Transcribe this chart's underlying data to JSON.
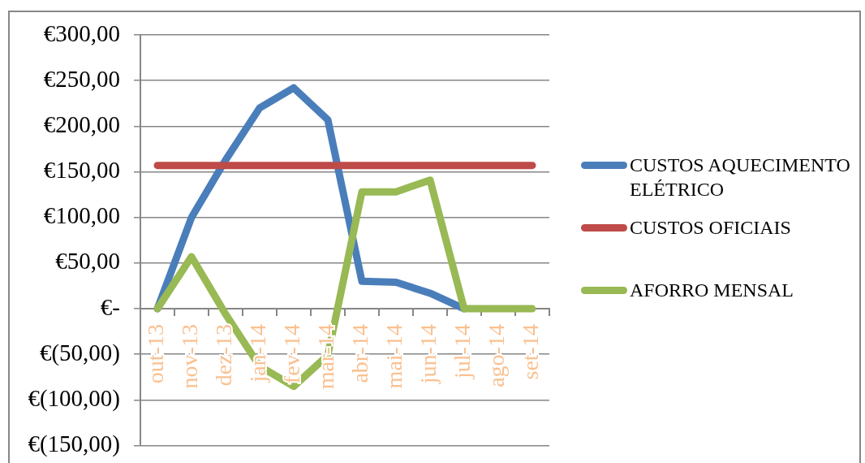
{
  "chart_data": {
    "type": "line",
    "categories": [
      "out-13",
      "nov-13",
      "dez-13",
      "jan-14",
      "fev-14",
      "mar-14",
      "abr-14",
      "mai-14",
      "jun-14",
      "jul-14",
      "ago-14",
      "set-14"
    ],
    "series": [
      {
        "name": "CUSTOS AQUECIMENTO ELÉTRICO",
        "color": "#4a7ebb",
        "values": [
          0,
          100,
          163,
          220,
          242,
          207,
          30,
          29,
          17,
          0,
          null,
          null
        ]
      },
      {
        "name": "CUSTOS OFICIAIS",
        "color": "#be4b48",
        "values": [
          157,
          157,
          157,
          157,
          157,
          157,
          157,
          157,
          157,
          157,
          157,
          157
        ]
      },
      {
        "name": "AFORRO MENSAL",
        "color": "#98b954",
        "values": [
          0,
          57,
          -6,
          -63,
          -85,
          -51,
          128,
          128,
          141,
          0,
          0,
          0
        ]
      }
    ],
    "ylim": [
      -150,
      300
    ],
    "yticks": [
      {
        "value": -150,
        "label": "€(150,00)"
      },
      {
        "value": -100,
        "label": "€(100,00)"
      },
      {
        "value": -50,
        "label": "€(50,00)"
      },
      {
        "value": 0,
        "label": "€-"
      },
      {
        "value": 50,
        "label": "€50,00"
      },
      {
        "value": 100,
        "label": "€100,00"
      },
      {
        "value": 150,
        "label": "€150,00"
      },
      {
        "value": 200,
        "label": "€200,00"
      },
      {
        "value": 250,
        "label": "€250,00"
      },
      {
        "value": 300,
        "label": "€300,00"
      }
    ],
    "grid": "y",
    "legend": "right",
    "marker": "none",
    "line_style": "solid"
  }
}
